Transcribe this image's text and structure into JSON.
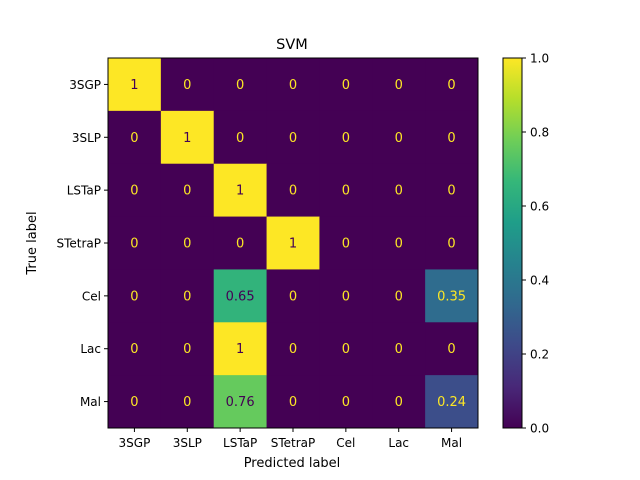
{
  "chart_data": {
    "type": "heatmap",
    "title": "SVM",
    "xlabel": "Predicted label",
    "ylabel": "True label",
    "x_categories": [
      "3SGP",
      "3SLP",
      "LSTaP",
      "STetraP",
      "Cel",
      "Lac",
      "Mal"
    ],
    "y_categories": [
      "3SGP",
      "3SLP",
      "LSTaP",
      "STetraP",
      "Cel",
      "Lac",
      "Mal"
    ],
    "matrix": [
      [
        1,
        0,
        0,
        0,
        0,
        0,
        0
      ],
      [
        0,
        1,
        0,
        0,
        0,
        0,
        0
      ],
      [
        0,
        0,
        1,
        0,
        0,
        0,
        0
      ],
      [
        0,
        0,
        0,
        1,
        0,
        0,
        0
      ],
      [
        0,
        0,
        0.65,
        0,
        0,
        0,
        0.35
      ],
      [
        0,
        0,
        1,
        0,
        0,
        0,
        0
      ],
      [
        0,
        0,
        0.76,
        0,
        0,
        0,
        0.24
      ]
    ],
    "colorbar": {
      "range": [
        0.0,
        1.0
      ],
      "ticks": [
        "0.0",
        "0.2",
        "0.4",
        "0.6",
        "0.8",
        "1.0"
      ],
      "colormap": "viridis"
    },
    "text_color_dark_cells": "#fde725",
    "text_color_light_cells": "#440154"
  }
}
